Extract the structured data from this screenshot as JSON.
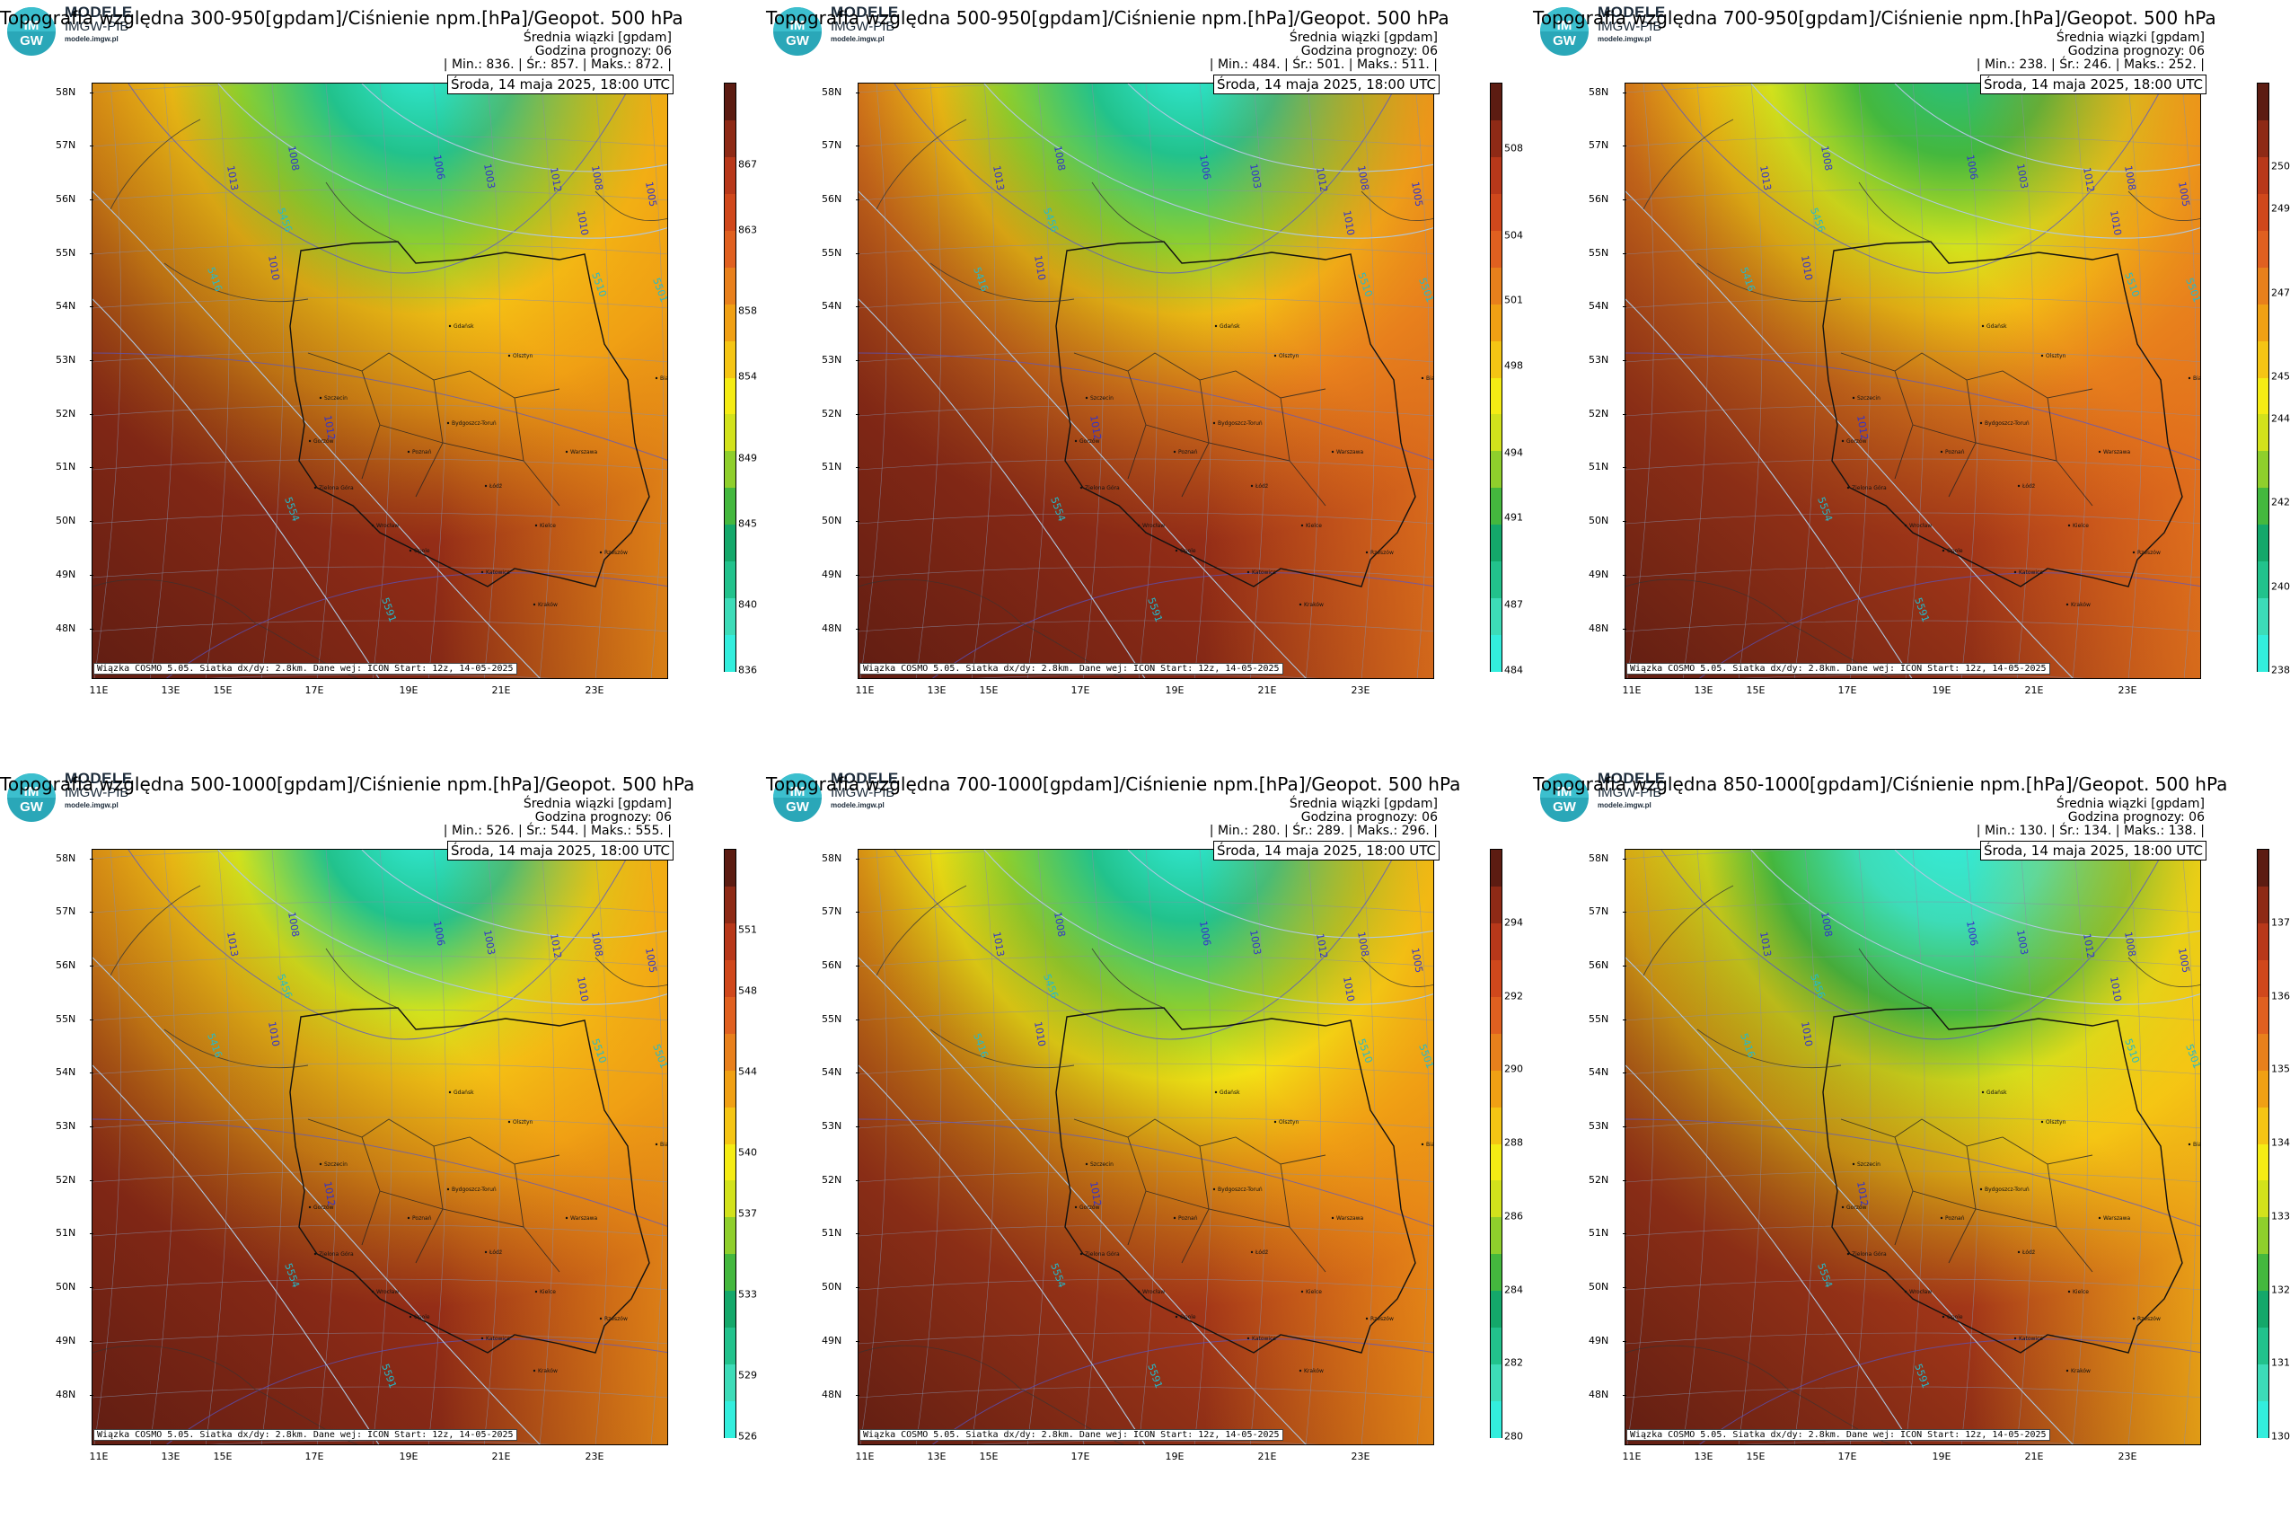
{
  "brand": {
    "line1": "MODELE",
    "line2": "IMGW-PIB",
    "line3": "modele.imgw.pl",
    "logo_top": "IM",
    "logo_bottom": "GW"
  },
  "common": {
    "subtitle": "Średnia wiązki [gpdam]",
    "forecast_hour": "Godzina prognozy: 06",
    "date": "Środa, 14 maja 2025, 18:00 UTC",
    "footer": "Wiązka COSMO 5.05. Siatka dx/dy: 2.8km. Dane wej: ICON Start: 12z, 14-05-2025",
    "lat_labels": [
      "58N",
      "57N",
      "56N",
      "55N",
      "54N",
      "53N",
      "52N",
      "51N",
      "50N",
      "49N",
      "48N"
    ],
    "lon_labels": [
      "11E",
      "13E",
      "15E",
      "17E",
      "19E",
      "21E",
      "23E"
    ],
    "cities": [
      "Gdańsk",
      "Olsztyn",
      "Szczecin",
      "Białystok",
      "Bydgoszcz-Toruń",
      "Gorzów",
      "Poznań",
      "Warszawa",
      "Łódź",
      "Zielona Góra",
      "Lublin",
      "Wrocław",
      "Kielce",
      "Opole",
      "Katowice",
      "Rzeszów",
      "Kraków"
    ],
    "isobar_labels": [
      "1013",
      "1008",
      "1006",
      "1003",
      "1012",
      "1010",
      "1005",
      "1008",
      "1010",
      "1012"
    ],
    "geop_labels": [
      "5416",
      "5456",
      "5501",
      "5571",
      "5554",
      "5591",
      "5628",
      "5510"
    ]
  },
  "colors": {
    "scale": [
      "#33eedd",
      "#3ddcb8",
      "#22c28c",
      "#14a86a",
      "#44b83e",
      "#8fcf2c",
      "#d2e21c",
      "#f5ec14",
      "#f5c514",
      "#f0a014",
      "#e8801c",
      "#e06020",
      "#d0481c",
      "#b8381a",
      "#8e2a16",
      "#5c1c12"
    ]
  },
  "panels": [
    {
      "id": "p1",
      "title": "Topografia względna 300-950[gpdam]/Ciśnienie npm.[hPa]/Geopot. 500 hPa",
      "stats": "| Min.:   836. | Śr.:    857. | Maks.:   872. |",
      "ticks": [
        "867",
        "863",
        "858",
        "854",
        "849",
        "845",
        "840",
        "836"
      ],
      "min": 836,
      "max": 872,
      "mean": 857,
      "levels": {
        "north": 836,
        "ring": 849,
        "mid": 858,
        "south": 867,
        "sw": 872
      }
    },
    {
      "id": "p2",
      "title": "Topografia względna 500-950[gpdam]/Ciśnienie npm.[hPa]/Geopot. 500 hPa",
      "stats": "| Min.:   484. | Śr.:    501. | Maks.:   511. |",
      "ticks": [
        "508",
        "504",
        "501",
        "498",
        "494",
        "491",
        "487",
        "484"
      ],
      "min": 484,
      "max": 511,
      "mean": 501,
      "levels": {
        "north": 484,
        "ring": 494,
        "mid": 501,
        "south": 506,
        "sw": 511
      }
    },
    {
      "id": "p3",
      "title": "Topografia względna 700-950[gpdam]/Ciśnienie npm.[hPa]/Geopot. 500 hPa",
      "stats": "| Min.:   238. | Śr.:    246. | Maks.:   252. |",
      "ticks": [
        "250",
        "249",
        "247",
        "245",
        "244",
        "242",
        "240",
        "238"
      ],
      "min": 238,
      "max": 252,
      "mean": 246,
      "levels": {
        "north": 240,
        "ring": 244,
        "mid": 247,
        "south": 249,
        "sw": 252
      }
    },
    {
      "id": "p4",
      "title": "Topografia względna 500-1000[gpdam]/Ciśnienie npm.[hPa]/Geopot. 500 hPa",
      "stats": "| Min.:   526. | Śr.:    544. | Maks.:   555. |",
      "ticks": [
        "551",
        "548",
        "544",
        "540",
        "537",
        "533",
        "529",
        "526"
      ],
      "min": 526,
      "max": 555,
      "mean": 544,
      "levels": {
        "north": 526,
        "ring": 537,
        "mid": 544,
        "south": 550,
        "sw": 555
      }
    },
    {
      "id": "p5",
      "title": "Topografia względna 700-1000[gpdam]/Ciśnienie npm.[hPa]/Geopot. 500 hPa",
      "stats": "| Min.:   280. | Śr.:    289. | Maks.:   296. |",
      "ticks": [
        "294",
        "292",
        "290",
        "288",
        "286",
        "284",
        "282",
        "280"
      ],
      "min": 280,
      "max": 296,
      "mean": 289,
      "levels": {
        "north": 280,
        "ring": 285,
        "mid": 289,
        "south": 292,
        "sw": 296
      }
    },
    {
      "id": "p6",
      "title": "Topografia względna 850-1000[gpdam]/Ciśnienie npm.[hPa]/Geopot. 500 hPa",
      "stats": "| Min.:   130. | Śr.:    134. | Maks.:   138. |",
      "ticks": [
        "137",
        "136",
        "135",
        "134",
        "133",
        "132",
        "131",
        "130"
      ],
      "min": 130,
      "max": 138,
      "mean": 134,
      "levels": {
        "north": 130,
        "ring": 132,
        "mid": 134,
        "south": 136,
        "sw": 138
      }
    }
  ]
}
